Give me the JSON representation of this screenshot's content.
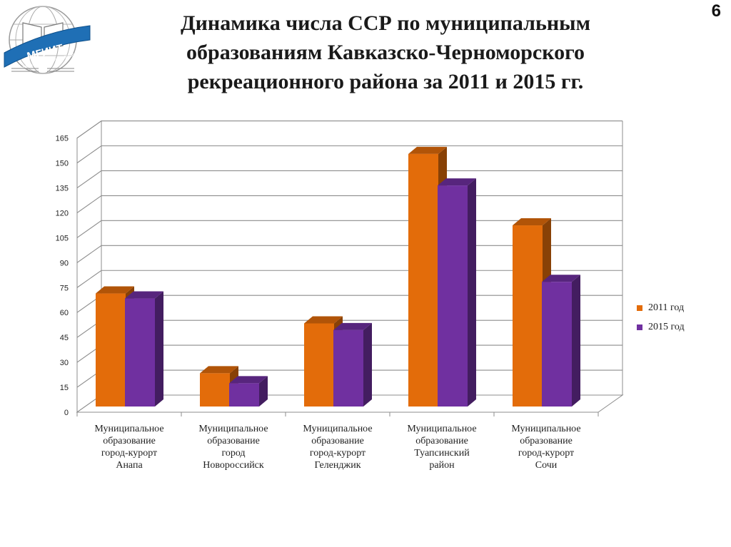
{
  "slide": {
    "number": "6",
    "title_lines": [
      "Динамика числа ССР по муниципальным",
      "образованиям Кавказско-Черноморского",
      "рекреационного района за 2011 и 2015 гг."
    ]
  },
  "logo": {
    "name": "МГИИТ",
    "subtitle": "имени Ю.А. Сенкевича"
  },
  "colors": {
    "series_2011": "#E36C0A",
    "series_2015": "#7030A0",
    "grid": "#8c8c8c"
  },
  "chart_data": {
    "type": "bar",
    "title": "",
    "ylim": [
      0,
      165
    ],
    "yticks": [
      0,
      15,
      30,
      45,
      60,
      75,
      90,
      105,
      120,
      135,
      150,
      165
    ],
    "grid": true,
    "legend_position": "right",
    "categories": [
      [
        "Муниципальное",
        "образование",
        "город-курорт",
        "Анапа"
      ],
      [
        "Муниципальное",
        "образование",
        "город",
        "Новороссийск"
      ],
      [
        "Муниципальное",
        "образование",
        "город-курорт",
        "Геленджик"
      ],
      [
        "Муниципальное",
        "образование",
        "Туапсинский",
        "район"
      ],
      [
        "Муниципальное",
        "образование",
        "город-курорт",
        "Сочи"
      ]
    ],
    "series": [
      {
        "name": "2011 год",
        "values": [
          68,
          20,
          50,
          152,
          109
        ]
      },
      {
        "name": "2015 год",
        "values": [
          65,
          14,
          46,
          133,
          75
        ]
      }
    ]
  }
}
